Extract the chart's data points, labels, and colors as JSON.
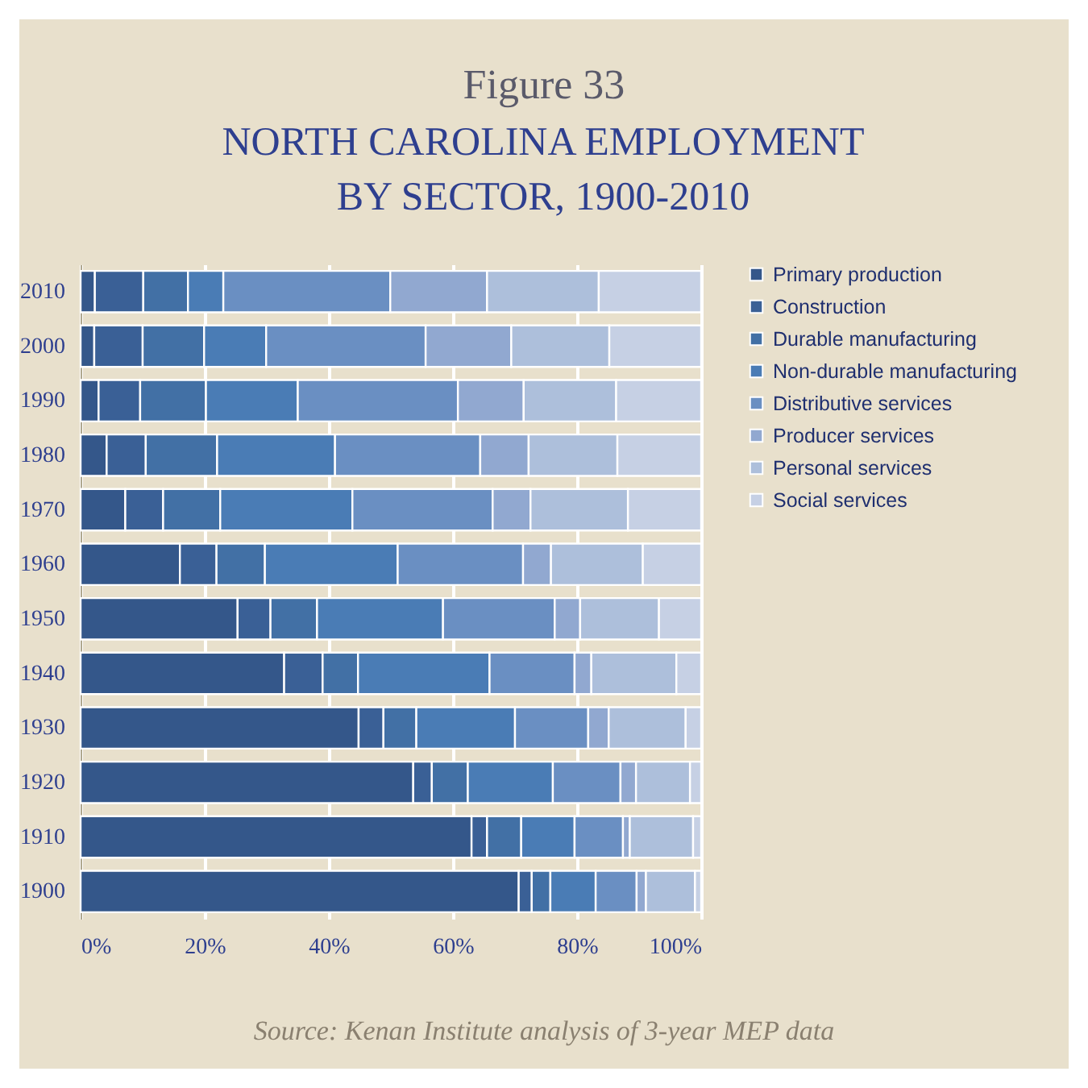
{
  "chart_data": {
    "type": "bar",
    "orientation": "horizontal",
    "stacked": true,
    "title": "Figure 33",
    "subtitle": "NORTH CAROLINA EMPLOYMENT BY SECTOR, 1900-2010",
    "categories": [
      "2010",
      "2000",
      "1990",
      "1980",
      "1970",
      "1960",
      "1950",
      "1940",
      "1930",
      "1920",
      "1910",
      "1900"
    ],
    "series": [
      {
        "name": "Primary production",
        "color": "#34578a",
        "values": [
          2.3,
          2.2,
          2.9,
          4.2,
          7.2,
          16.0,
          25.3,
          32.8,
          44.8,
          53.6,
          63.0,
          70.6
        ]
      },
      {
        "name": "Construction",
        "color": "#3a6096",
        "values": [
          7.8,
          7.8,
          6.7,
          6.3,
          6.1,
          5.9,
          5.3,
          6.2,
          4.0,
          3.0,
          2.5,
          2.1
        ]
      },
      {
        "name": "Durable manufacturing",
        "color": "#4270a5",
        "values": [
          7.2,
          9.9,
          10.6,
          11.5,
          9.2,
          7.8,
          7.5,
          5.7,
          5.3,
          5.8,
          5.5,
          3.0
        ]
      },
      {
        "name": "Non-durable manufacturing",
        "color": "#4a7cb5",
        "values": [
          5.7,
          10.0,
          14.8,
          19.0,
          21.3,
          21.4,
          20.3,
          21.2,
          15.9,
          13.7,
          8.6,
          7.3
        ]
      },
      {
        "name": "Distributive services",
        "color": "#6a8fc2",
        "values": [
          26.9,
          25.7,
          25.8,
          23.4,
          22.6,
          20.2,
          18.0,
          13.7,
          11.8,
          10.9,
          7.8,
          6.6
        ]
      },
      {
        "name": "Producer services",
        "color": "#91a8d0",
        "values": [
          15.6,
          13.8,
          10.6,
          7.8,
          6.1,
          4.5,
          4.1,
          2.7,
          3.3,
          2.5,
          1.1,
          1.5
        ]
      },
      {
        "name": "Personal services",
        "color": "#adbfdb",
        "values": [
          18.0,
          15.8,
          14.9,
          14.3,
          15.7,
          14.8,
          12.7,
          13.7,
          12.4,
          8.7,
          10.2,
          7.9
        ]
      },
      {
        "name": "Social services",
        "color": "#c6d0e4",
        "values": [
          16.5,
          14.8,
          13.7,
          13.5,
          11.8,
          9.4,
          6.8,
          4.0,
          2.5,
          1.8,
          1.3,
          1.0
        ]
      }
    ],
    "xlim": [
      0,
      100
    ],
    "xticks": [
      {
        "value": 0,
        "label": "0%"
      },
      {
        "value": 20,
        "label": "20%"
      },
      {
        "value": 40,
        "label": "40%"
      },
      {
        "value": 60,
        "label": "60%"
      },
      {
        "value": 80,
        "label": "80%"
      },
      {
        "value": 100,
        "label": "100%"
      }
    ],
    "grid": "x",
    "legend": "right",
    "annotations": [
      "Source:  Kenan Institute analysis of 3-year MEP data"
    ]
  }
}
